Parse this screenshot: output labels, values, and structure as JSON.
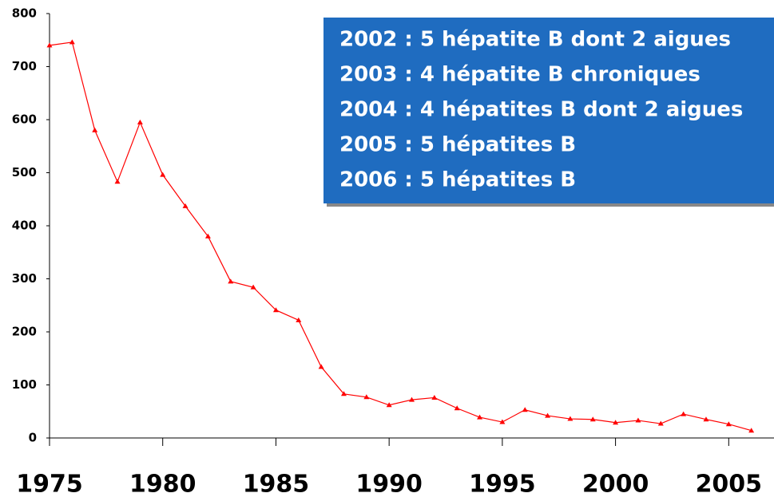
{
  "chart_data": {
    "type": "line",
    "x": [
      1975,
      1976,
      1977,
      1978,
      1979,
      1980,
      1981,
      1982,
      1983,
      1984,
      1985,
      1986,
      1987,
      1988,
      1989,
      1990,
      1991,
      1992,
      1993,
      1994,
      1995,
      1996,
      1997,
      1998,
      1999,
      2000,
      2001,
      2002,
      2003,
      2004,
      2005,
      2006
    ],
    "values": [
      740,
      746,
      580,
      483,
      595,
      496,
      437,
      380,
      295,
      284,
      241,
      222,
      134,
      83,
      77,
      62,
      72,
      76,
      56,
      39,
      30,
      53,
      42,
      36,
      35,
      29,
      33,
      27,
      45,
      35,
      26,
      14
    ],
    "color": "#ff0000",
    "xlim": [
      1975,
      2007
    ],
    "xticks": [
      1975,
      1980,
      1985,
      1990,
      1995,
      2000,
      2005
    ],
    "ylim": [
      0,
      800
    ],
    "yticks": [
      0,
      100,
      200,
      300,
      400,
      500,
      600,
      700,
      800
    ],
    "annotations": [
      "2002 : 5 hépatite B dont 2 aigues",
      "2003 : 4 hépatite B chroniques",
      "2004 : 4 hépatites B dont 2 aigues",
      "2005 : 5 hépatites B",
      "2006 : 5 hépatites B"
    ]
  }
}
